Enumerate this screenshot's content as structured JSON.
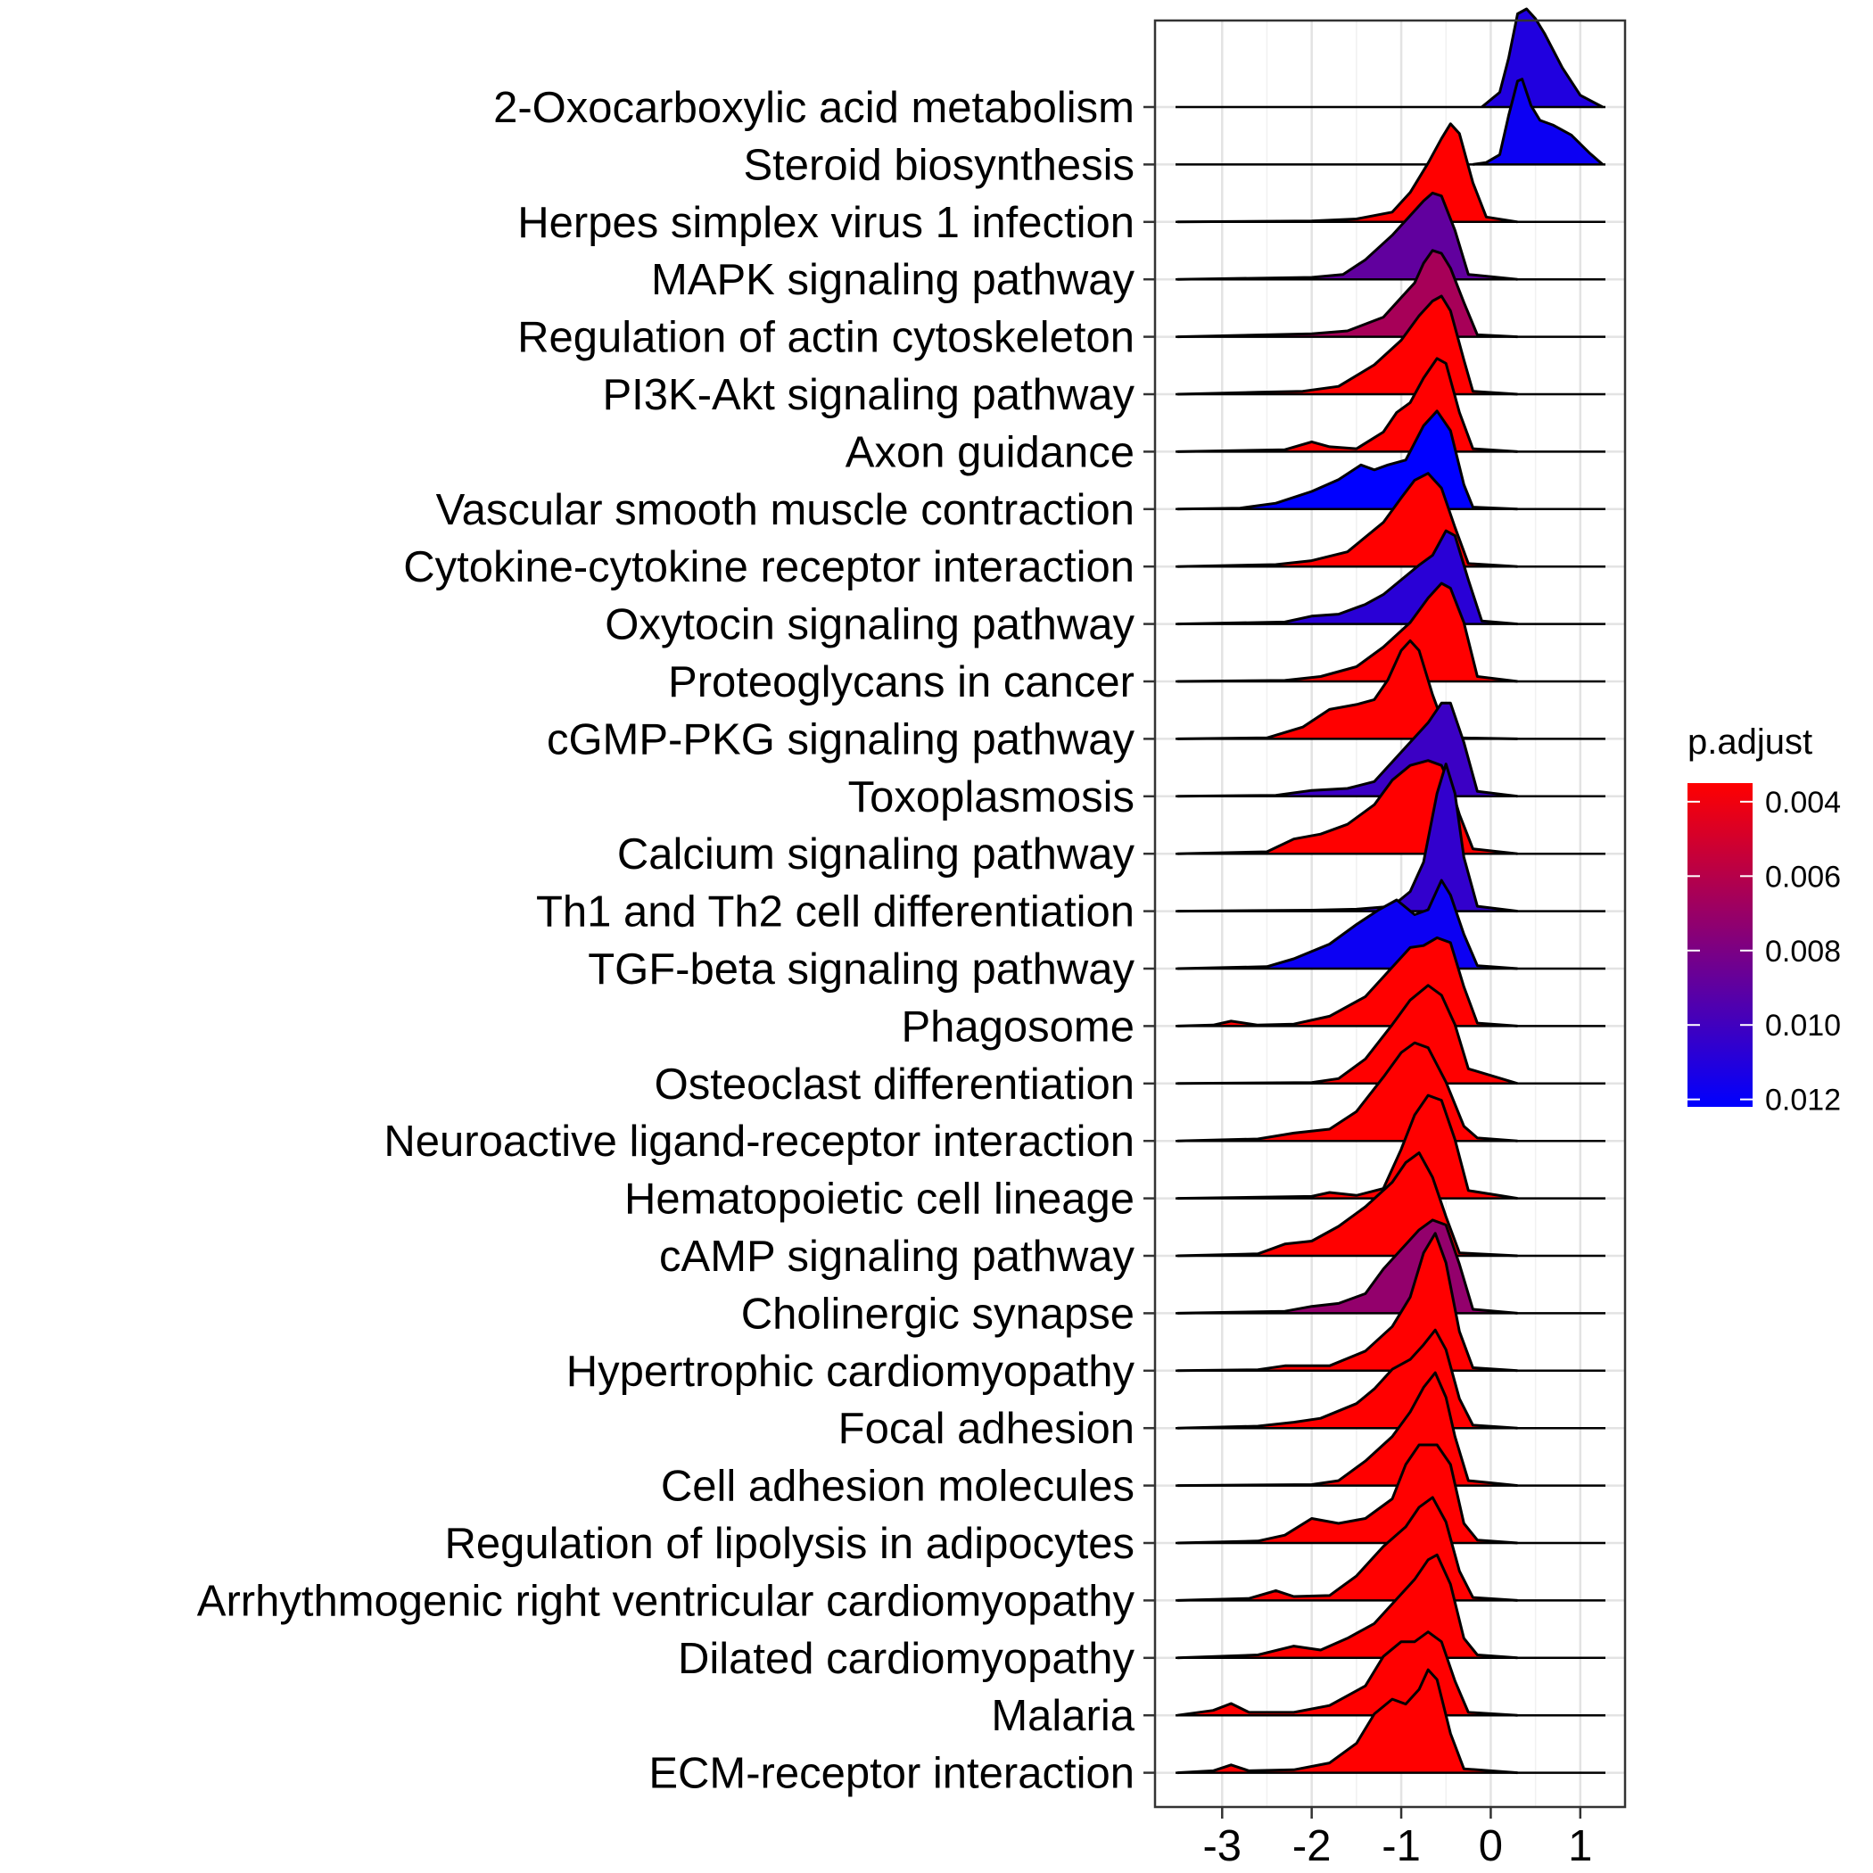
{
  "chart_data": {
    "type": "ridgeline",
    "xlim": [
      -3.75,
      1.5
    ],
    "x_ticks": [
      -3,
      -2,
      -1,
      0,
      1
    ],
    "x_tick_labels": [
      "-3",
      "-2",
      "-1",
      "0",
      "1"
    ],
    "grid": true,
    "legend": {
      "title": "p.adjust",
      "position": "right",
      "colors": [
        "#FF0000",
        "#0000FF"
      ],
      "range": [
        0.0035,
        0.0122
      ],
      "ticks": [
        0.004,
        0.006,
        0.008,
        0.01,
        0.012
      ],
      "tick_labels": [
        "0.004",
        "0.006",
        "0.008",
        "0.010",
        "0.012"
      ]
    },
    "ridges": [
      {
        "name": "2-Oxocarboxylic acid metabolism",
        "p_adjust": 0.0111,
        "x": [
          -0.1,
          0.1,
          0.2,
          0.3,
          0.4,
          0.5,
          0.6,
          0.8,
          1.0,
          1.25
        ],
        "h": [
          0,
          0.15,
          0.5,
          0.95,
          1.0,
          0.9,
          0.75,
          0.4,
          0.12,
          0
        ]
      },
      {
        "name": "Steroid biosynthesis",
        "p_adjust": 0.0118,
        "x": [
          -0.2,
          -0.05,
          0.1,
          0.2,
          0.3,
          0.35,
          0.45,
          0.55,
          0.7,
          0.9,
          1.1,
          1.25
        ],
        "h": [
          0,
          0.02,
          0.1,
          0.5,
          0.85,
          0.87,
          0.6,
          0.45,
          0.4,
          0.3,
          0.12,
          0
        ]
      },
      {
        "name": "Herpes simplex virus 1 infection",
        "p_adjust": 0.0035,
        "x": [
          -3.5,
          -2.0,
          -1.5,
          -1.1,
          -0.9,
          -0.7,
          -0.55,
          -0.45,
          -0.35,
          -0.2,
          -0.05,
          0.3
        ],
        "h": [
          0,
          0.01,
          0.03,
          0.1,
          0.3,
          0.6,
          0.85,
          1.0,
          0.9,
          0.4,
          0.05,
          0
        ]
      },
      {
        "name": "MAPK signaling pathway",
        "p_adjust": 0.0089,
        "x": [
          -3.5,
          -2.0,
          -1.65,
          -1.4,
          -1.1,
          -0.9,
          -0.75,
          -0.65,
          -0.55,
          -0.4,
          -0.25,
          0.3
        ],
        "h": [
          0,
          0.02,
          0.05,
          0.2,
          0.45,
          0.65,
          0.8,
          0.88,
          0.85,
          0.5,
          0.05,
          0
        ]
      },
      {
        "name": "Regulation of actin cytoskeleton",
        "p_adjust": 0.0065,
        "x": [
          -3.5,
          -2.0,
          -1.6,
          -1.2,
          -1.0,
          -0.85,
          -0.75,
          -0.65,
          -0.55,
          -0.45,
          -0.3,
          -0.15,
          0.3
        ],
        "h": [
          0,
          0.03,
          0.06,
          0.2,
          0.4,
          0.55,
          0.75,
          0.88,
          0.85,
          0.7,
          0.35,
          0.02,
          0
        ]
      },
      {
        "name": "PI3K-Akt signaling pathway",
        "p_adjust": 0.0035,
        "x": [
          -3.5,
          -2.6,
          -2.1,
          -1.7,
          -1.3,
          -1.0,
          -0.8,
          -0.65,
          -0.55,
          -0.45,
          -0.3,
          -0.2,
          0.3
        ],
        "h": [
          0,
          0.02,
          0.03,
          0.08,
          0.3,
          0.55,
          0.8,
          0.95,
          1.0,
          0.85,
          0.35,
          0.03,
          0
        ]
      },
      {
        "name": "Axon guidance",
        "p_adjust": 0.0035,
        "x": [
          -3.5,
          -2.3,
          -2.0,
          -1.8,
          -1.5,
          -1.2,
          -1.05,
          -0.9,
          -0.75,
          -0.6,
          -0.5,
          -0.35,
          -0.2,
          0.3
        ],
        "h": [
          0,
          0.02,
          0.1,
          0.05,
          0.03,
          0.2,
          0.4,
          0.5,
          0.75,
          0.95,
          0.9,
          0.4,
          0.03,
          0
        ]
      },
      {
        "name": "Vascular smooth muscle contraction",
        "p_adjust": 0.0122,
        "x": [
          -3.5,
          -2.8,
          -2.4,
          -2.0,
          -1.7,
          -1.45,
          -1.3,
          -1.15,
          -0.95,
          -0.75,
          -0.6,
          -0.45,
          -0.3,
          -0.2,
          0.3
        ],
        "h": [
          0,
          0.01,
          0.06,
          0.18,
          0.3,
          0.45,
          0.4,
          0.45,
          0.5,
          0.85,
          1.0,
          0.8,
          0.25,
          0.02,
          0
        ]
      },
      {
        "name": "Cytokine-cytokine receptor interaction",
        "p_adjust": 0.0035,
        "x": [
          -3.5,
          -2.4,
          -2.0,
          -1.6,
          -1.2,
          -1.0,
          -0.85,
          -0.7,
          -0.55,
          -0.4,
          -0.25,
          0.3
        ],
        "h": [
          0,
          0.02,
          0.06,
          0.15,
          0.45,
          0.7,
          0.88,
          0.95,
          0.8,
          0.4,
          0.03,
          0
        ]
      },
      {
        "name": "Oxytocin signaling pathway",
        "p_adjust": 0.0108,
        "x": [
          -3.5,
          -2.3,
          -2.0,
          -1.7,
          -1.4,
          -1.2,
          -1.0,
          -0.8,
          -0.65,
          -0.5,
          -0.4,
          -0.25,
          -0.1,
          0.3
        ],
        "h": [
          0,
          0.02,
          0.08,
          0.1,
          0.2,
          0.3,
          0.45,
          0.6,
          0.7,
          0.95,
          0.9,
          0.45,
          0.03,
          0
        ]
      },
      {
        "name": "Proteoglycans in cancer",
        "p_adjust": 0.0035,
        "x": [
          -3.5,
          -2.3,
          -1.9,
          -1.5,
          -1.2,
          -0.9,
          -0.7,
          -0.55,
          -0.45,
          -0.3,
          -0.15,
          0.3
        ],
        "h": [
          0,
          0.01,
          0.05,
          0.15,
          0.35,
          0.6,
          0.85,
          1.0,
          0.95,
          0.6,
          0.05,
          0
        ]
      },
      {
        "name": "cGMP-PKG signaling pathway",
        "p_adjust": 0.0035,
        "x": [
          -3.5,
          -2.5,
          -2.1,
          -1.8,
          -1.5,
          -1.3,
          -1.15,
          -1.0,
          -0.9,
          -0.8,
          -0.65,
          -0.5,
          -0.35,
          0.3
        ],
        "h": [
          0,
          0.01,
          0.12,
          0.3,
          0.35,
          0.4,
          0.6,
          0.9,
          1.0,
          0.9,
          0.45,
          0.08,
          0.01,
          0
        ]
      },
      {
        "name": "Toxoplasmosis",
        "p_adjust": 0.0102,
        "x": [
          -3.5,
          -2.4,
          -2.0,
          -1.6,
          -1.3,
          -1.1,
          -0.9,
          -0.7,
          -0.55,
          -0.45,
          -0.3,
          -0.15,
          0.3
        ],
        "h": [
          0,
          0.01,
          0.06,
          0.08,
          0.15,
          0.35,
          0.55,
          0.75,
          0.95,
          0.95,
          0.55,
          0.05,
          0
        ]
      },
      {
        "name": "Calcium signaling pathway",
        "p_adjust": 0.0035,
        "x": [
          -3.5,
          -2.5,
          -2.2,
          -1.9,
          -1.6,
          -1.3,
          -1.1,
          -0.9,
          -0.7,
          -0.55,
          -0.45,
          -0.35,
          -0.2,
          0.3
        ],
        "h": [
          0,
          0.02,
          0.15,
          0.2,
          0.3,
          0.5,
          0.75,
          0.9,
          0.95,
          0.9,
          0.7,
          0.4,
          0.05,
          0
        ]
      },
      {
        "name": "Th1 and Th2 cell differentiation",
        "p_adjust": 0.0105,
        "x": [
          -3.5,
          -2.0,
          -1.5,
          -1.1,
          -0.9,
          -0.75,
          -0.6,
          -0.5,
          -0.4,
          -0.3,
          -0.15,
          0.3
        ],
        "h": [
          0,
          0.01,
          0.02,
          0.05,
          0.2,
          0.5,
          1.2,
          1.5,
          1.2,
          0.55,
          0.05,
          0
        ]
      },
      {
        "name": "TGF-beta signaling pathway",
        "p_adjust": 0.0118,
        "x": [
          -3.5,
          -2.5,
          -2.2,
          -1.8,
          -1.5,
          -1.25,
          -1.05,
          -0.85,
          -0.7,
          -0.55,
          -0.45,
          -0.3,
          -0.15,
          0.3
        ],
        "h": [
          0,
          0.02,
          0.1,
          0.25,
          0.45,
          0.6,
          0.7,
          0.55,
          0.6,
          0.9,
          0.75,
          0.35,
          0.03,
          0
        ]
      },
      {
        "name": "Phagosome",
        "p_adjust": 0.0035,
        "x": [
          -3.5,
          -3.1,
          -2.9,
          -2.6,
          -2.2,
          -1.8,
          -1.4,
          -1.1,
          -0.9,
          -0.75,
          -0.6,
          -0.45,
          -0.3,
          -0.15,
          0.3
        ],
        "h": [
          0,
          0.01,
          0.05,
          0.01,
          0.02,
          0.1,
          0.3,
          0.6,
          0.8,
          0.82,
          0.9,
          0.85,
          0.4,
          0.03,
          0
        ]
      },
      {
        "name": "Osteoclast differentiation",
        "p_adjust": 0.0035,
        "x": [
          -3.5,
          -2.0,
          -1.7,
          -1.4,
          -1.1,
          -0.9,
          -0.7,
          -0.55,
          -0.4,
          -0.25,
          0.3
        ],
        "h": [
          0,
          0.01,
          0.05,
          0.25,
          0.6,
          0.85,
          1.0,
          0.9,
          0.6,
          0.15,
          0
        ]
      },
      {
        "name": "Neuroactive ligand-receptor interaction",
        "p_adjust": 0.0035,
        "x": [
          -3.5,
          -2.6,
          -2.2,
          -1.8,
          -1.5,
          -1.2,
          -1.0,
          -0.85,
          -0.7,
          -0.5,
          -0.3,
          -0.15,
          0.3
        ],
        "h": [
          0,
          0.02,
          0.08,
          0.12,
          0.3,
          0.65,
          0.9,
          1.0,
          0.95,
          0.6,
          0.15,
          0.03,
          0
        ]
      },
      {
        "name": "Hematopoietic cell lineage",
        "p_adjust": 0.0035,
        "x": [
          -3.5,
          -2.0,
          -1.8,
          -1.5,
          -1.2,
          -1.0,
          -0.85,
          -0.7,
          -0.55,
          -0.4,
          -0.25,
          0.3
        ],
        "h": [
          0,
          0.02,
          0.06,
          0.03,
          0.1,
          0.5,
          0.85,
          1.05,
          1.0,
          0.6,
          0.08,
          0
        ]
      },
      {
        "name": "cAMP signaling pathway",
        "p_adjust": 0.0035,
        "x": [
          -3.5,
          -2.6,
          -2.3,
          -2.0,
          -1.7,
          -1.4,
          -1.1,
          -0.95,
          -0.8,
          -0.65,
          -0.5,
          -0.35,
          0.3
        ],
        "h": [
          0,
          0.02,
          0.12,
          0.15,
          0.3,
          0.5,
          0.75,
          0.95,
          1.05,
          0.8,
          0.4,
          0.03,
          0
        ]
      },
      {
        "name": "Cholinergic synapse",
        "p_adjust": 0.0072,
        "x": [
          -3.5,
          -2.3,
          -2.0,
          -1.7,
          -1.4,
          -1.2,
          -1.0,
          -0.8,
          -0.65,
          -0.5,
          -0.35,
          -0.2,
          0.3
        ],
        "h": [
          0,
          0.02,
          0.07,
          0.1,
          0.2,
          0.45,
          0.65,
          0.85,
          0.95,
          0.9,
          0.5,
          0.04,
          0
        ]
      },
      {
        "name": "Hypertrophic cardiomyopathy",
        "p_adjust": 0.0035,
        "x": [
          -3.5,
          -2.6,
          -2.3,
          -1.8,
          -1.4,
          -1.1,
          -0.9,
          -0.75,
          -0.62,
          -0.5,
          -0.35,
          -0.2,
          0.3
        ],
        "h": [
          0,
          0.01,
          0.05,
          0.05,
          0.2,
          0.45,
          0.75,
          1.2,
          1.4,
          1.1,
          0.4,
          0.03,
          0
        ]
      },
      {
        "name": "Focal adhesion",
        "p_adjust": 0.0035,
        "x": [
          -3.5,
          -2.6,
          -2.2,
          -1.9,
          -1.5,
          -1.3,
          -1.1,
          -0.9,
          -0.75,
          -0.62,
          -0.5,
          -0.35,
          -0.2,
          0.3
        ],
        "h": [
          0,
          0.02,
          0.06,
          0.1,
          0.25,
          0.4,
          0.6,
          0.7,
          0.85,
          1.0,
          0.8,
          0.3,
          0.03,
          0
        ]
      },
      {
        "name": "Cell adhesion molecules",
        "p_adjust": 0.0035,
        "x": [
          -3.5,
          -2.0,
          -1.7,
          -1.4,
          -1.1,
          -0.9,
          -0.75,
          -0.62,
          -0.5,
          -0.4,
          -0.25,
          0.3
        ],
        "h": [
          0,
          0.01,
          0.05,
          0.25,
          0.5,
          0.75,
          1.0,
          1.15,
          0.9,
          0.5,
          0.05,
          0
        ]
      },
      {
        "name": "Regulation of lipolysis in adipocytes",
        "p_adjust": 0.0035,
        "x": [
          -3.5,
          -2.6,
          -2.3,
          -2.0,
          -1.7,
          -1.4,
          -1.1,
          -0.95,
          -0.8,
          -0.6,
          -0.45,
          -0.3,
          -0.15,
          0.3
        ],
        "h": [
          0,
          0.02,
          0.08,
          0.25,
          0.2,
          0.25,
          0.45,
          0.8,
          1.0,
          1.0,
          0.8,
          0.2,
          0.03,
          0
        ]
      },
      {
        "name": "Arrhythmogenic right ventricular cardiomyopathy",
        "p_adjust": 0.0035,
        "x": [
          -3.5,
          -2.7,
          -2.4,
          -2.2,
          -1.8,
          -1.5,
          -1.2,
          -0.95,
          -0.8,
          -0.65,
          -0.5,
          -0.35,
          -0.2,
          0.3
        ],
        "h": [
          0,
          0.02,
          0.1,
          0.04,
          0.05,
          0.25,
          0.55,
          0.75,
          0.95,
          1.05,
          0.8,
          0.3,
          0.03,
          0
        ]
      },
      {
        "name": "Dilated cardiomyopathy",
        "p_adjust": 0.0035,
        "x": [
          -3.5,
          -2.6,
          -2.2,
          -1.9,
          -1.6,
          -1.3,
          -1.05,
          -0.85,
          -0.7,
          -0.6,
          -0.45,
          -0.3,
          -0.15,
          0.3
        ],
        "h": [
          0,
          0.03,
          0.12,
          0.08,
          0.2,
          0.35,
          0.6,
          0.8,
          1.0,
          1.05,
          0.75,
          0.2,
          0.03,
          0
        ]
      },
      {
        "name": "Malaria",
        "p_adjust": 0.0035,
        "x": [
          -3.5,
          -3.1,
          -2.9,
          -2.7,
          -2.2,
          -1.8,
          -1.4,
          -1.2,
          -1.0,
          -0.85,
          -0.7,
          -0.55,
          -0.4,
          -0.25,
          0.3
        ],
        "h": [
          0,
          0.05,
          0.12,
          0.03,
          0.03,
          0.1,
          0.3,
          0.6,
          0.75,
          0.75,
          0.85,
          0.75,
          0.35,
          0.03,
          0
        ]
      },
      {
        "name": "ECM-receptor interaction",
        "p_adjust": 0.0035,
        "x": [
          -3.5,
          -3.1,
          -2.9,
          -2.7,
          -2.2,
          -1.8,
          -1.5,
          -1.3,
          -1.1,
          -0.95,
          -0.8,
          -0.7,
          -0.6,
          -0.45,
          -0.3,
          0.3
        ],
        "h": [
          0,
          0.02,
          0.08,
          0.02,
          0.03,
          0.1,
          0.3,
          0.6,
          0.75,
          0.7,
          0.85,
          1.05,
          0.95,
          0.4,
          0.04,
          0
        ]
      }
    ]
  }
}
